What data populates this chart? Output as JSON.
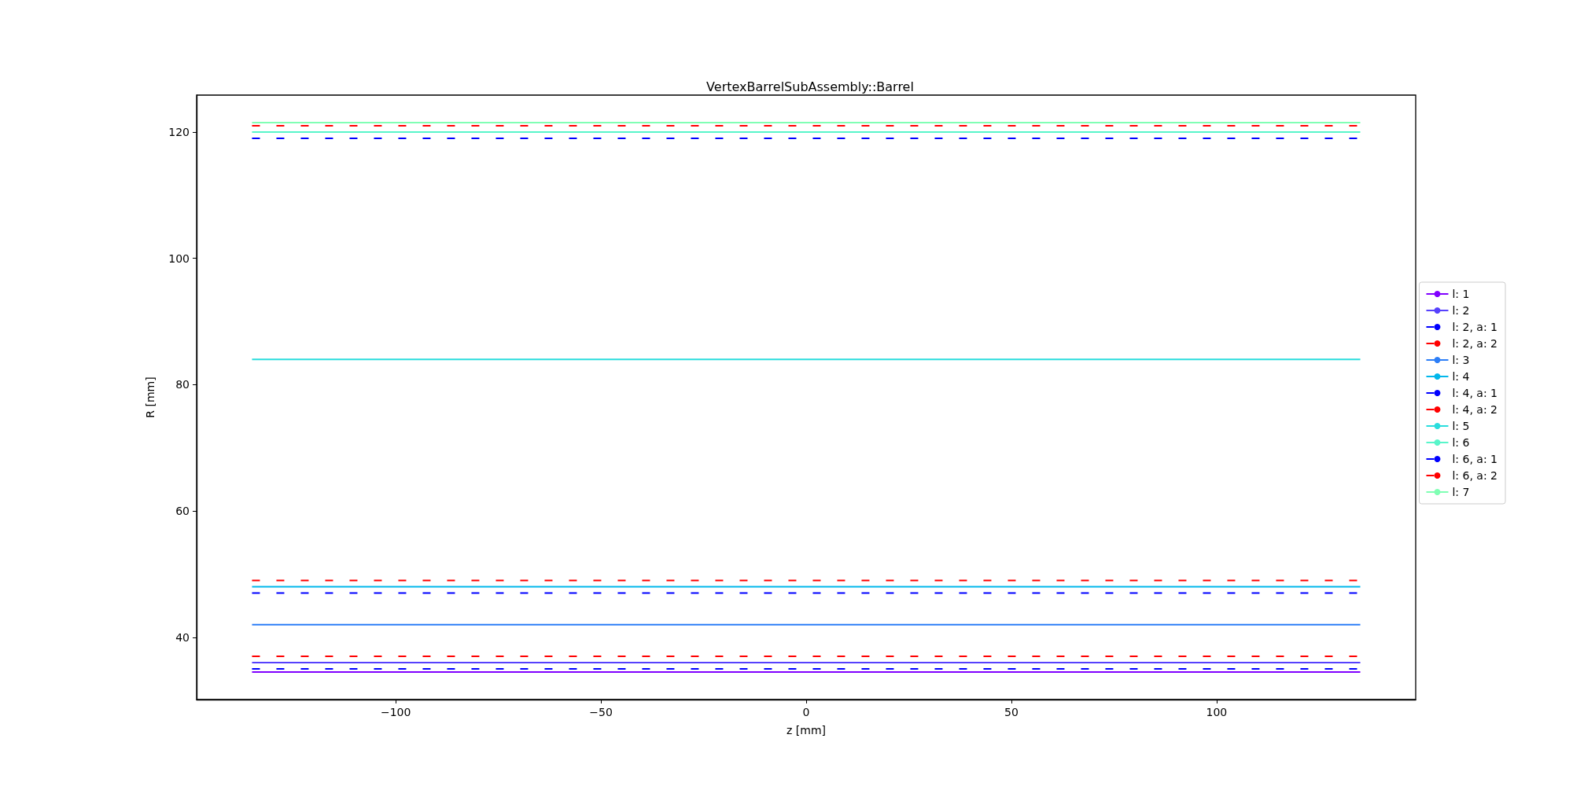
{
  "chart_data": {
    "type": "line",
    "title": "VertexBarrelSubAssembly::Barrel",
    "xlabel": "z [mm]",
    "ylabel": "R [mm]",
    "xlim": [
      -148.5,
      148.5
    ],
    "xticks": [
      {
        "value": -100,
        "label": "−100"
      },
      {
        "value": -50,
        "label": "−50"
      },
      0,
      50,
      100
    ],
    "ylim": [
      30.15,
      125.85
    ],
    "yticks": [
      40,
      60,
      80,
      100,
      120
    ],
    "grid": false,
    "legend": "right",
    "marker": "none",
    "x": [
      -135,
      135
    ],
    "series": [
      {
        "name": "l: 1",
        "color": "#8000ff",
        "values": [
          34.5,
          34.5
        ],
        "line_style": "solid"
      },
      {
        "name": "l: 2",
        "color": "#5641fd",
        "values": [
          36,
          36
        ],
        "line_style": "solid"
      },
      {
        "name": "l: 2, a: 1",
        "color": "#0000ff",
        "values": [
          35,
          35
        ],
        "line_style": "dashed"
      },
      {
        "name": "l: 2, a: 2",
        "color": "#ff0000",
        "values": [
          37,
          37
        ],
        "line_style": "dashed"
      },
      {
        "name": "l: 3",
        "color": "#2c7ef7",
        "values": [
          42,
          42
        ],
        "line_style": "solid"
      },
      {
        "name": "l: 4",
        "color": "#02b7eb",
        "values": [
          48,
          48
        ],
        "line_style": "solid"
      },
      {
        "name": "l: 4, a: 1",
        "color": "#0000ff",
        "values": [
          47,
          47
        ],
        "line_style": "dashed"
      },
      {
        "name": "l: 4, a: 2",
        "color": "#ff0000",
        "values": [
          49,
          49
        ],
        "line_style": "dashed"
      },
      {
        "name": "l: 5",
        "color": "#2adddd",
        "values": [
          84,
          84
        ],
        "line_style": "solid"
      },
      {
        "name": "l: 6",
        "color": "#58f5ca",
        "values": [
          120,
          120
        ],
        "line_style": "solid"
      },
      {
        "name": "l: 6, a: 1",
        "color": "#0000ff",
        "values": [
          119,
          119
        ],
        "line_style": "dashed"
      },
      {
        "name": "l: 6, a: 2",
        "color": "#ff0000",
        "values": [
          121,
          121
        ],
        "line_style": "dashed"
      },
      {
        "name": "l: 7",
        "color": "#80ffb4",
        "values": [
          121.5,
          121.5
        ],
        "line_style": "solid"
      }
    ]
  }
}
